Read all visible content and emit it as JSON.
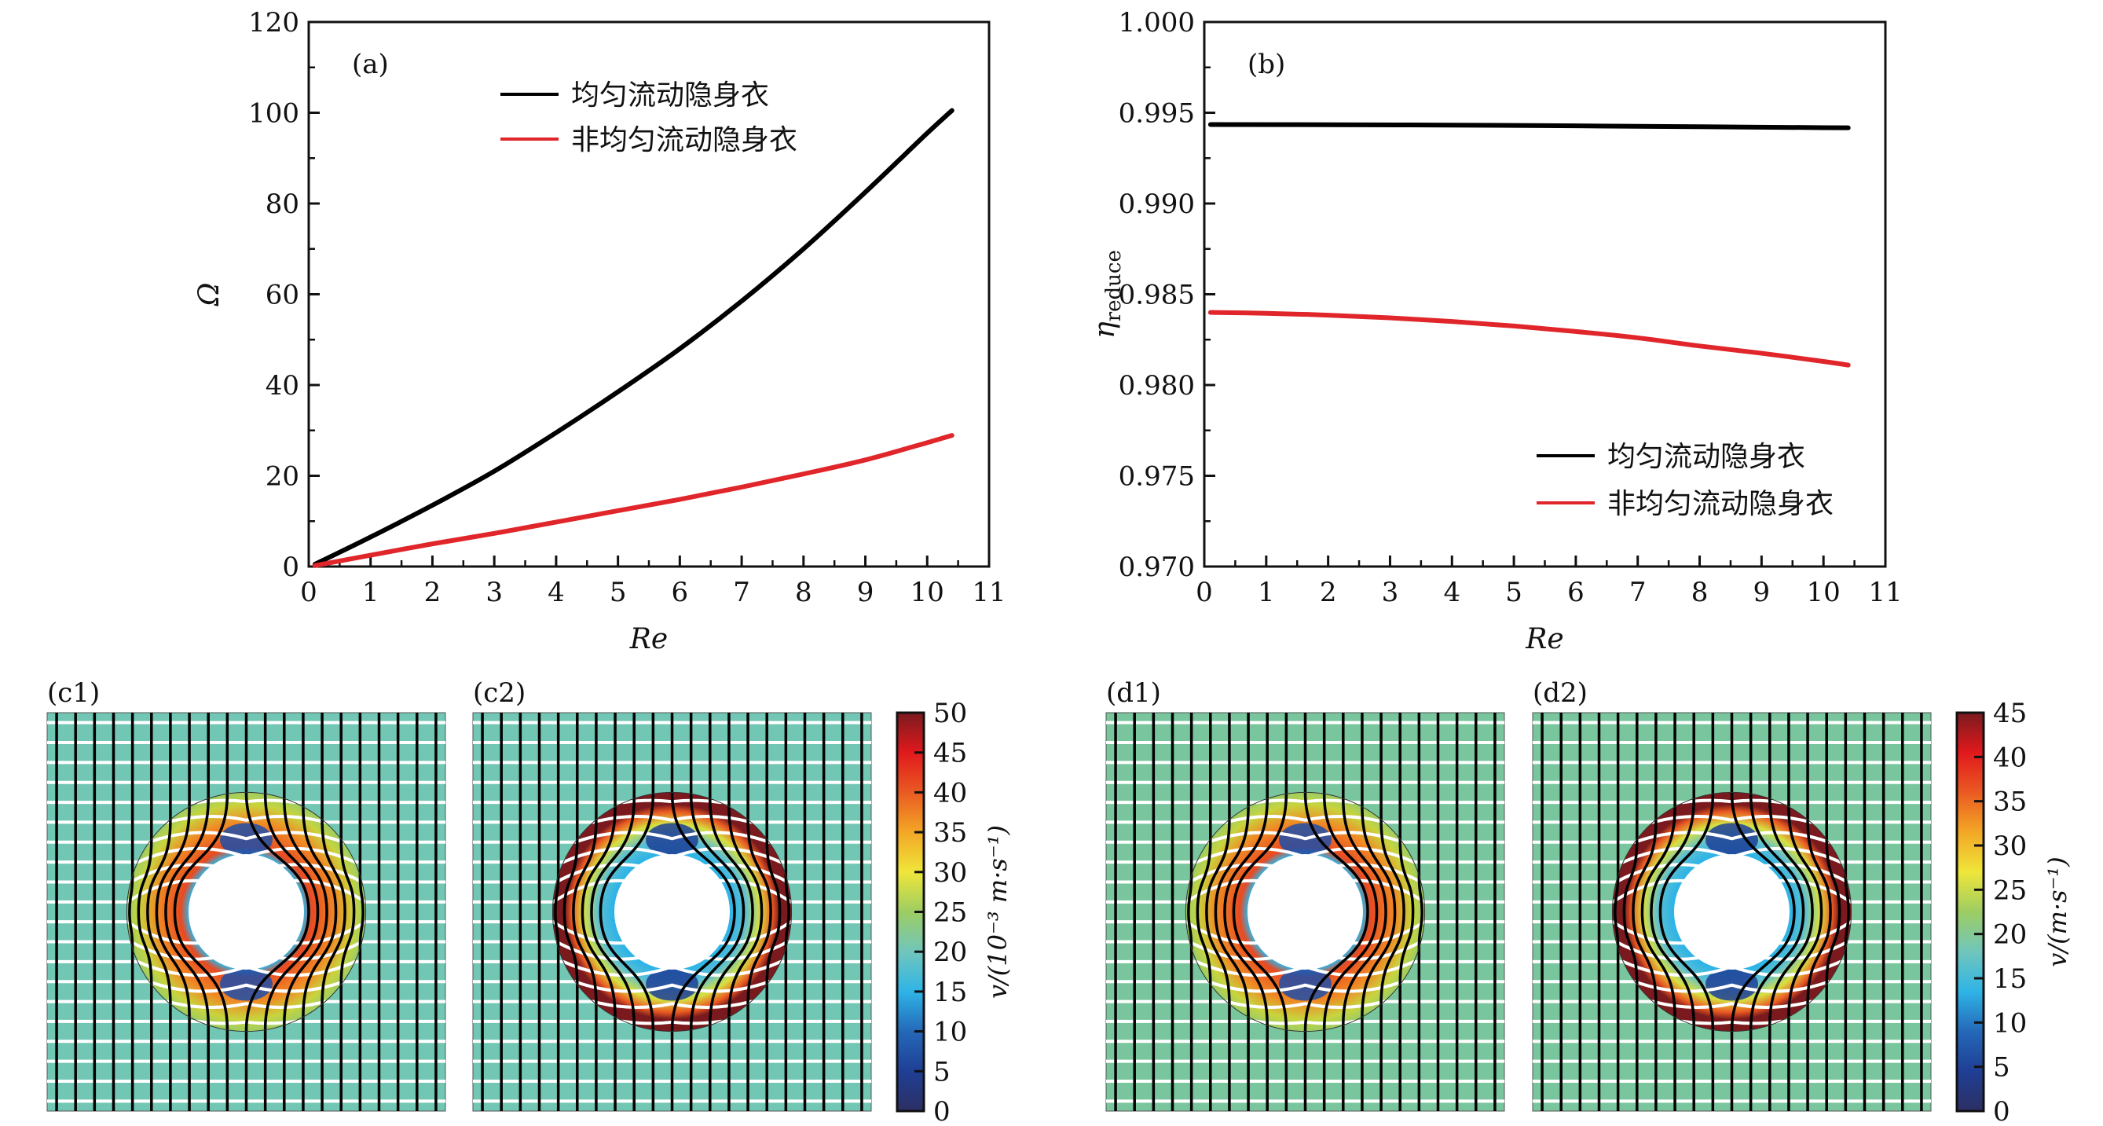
{
  "chart_data": [
    {
      "id": "a",
      "type": "line",
      "panel_label": "(a)",
      "xlabel": "Re",
      "ylabel": "Ω",
      "xlim": [
        0,
        11
      ],
      "ylim": [
        0,
        120
      ],
      "xticks": [
        0,
        1,
        2,
        3,
        4,
        5,
        6,
        7,
        8,
        9,
        10,
        11
      ],
      "yticks": [
        0,
        20,
        40,
        60,
        80,
        100,
        120
      ],
      "yticks_minor_step": 10,
      "xticks_minor_step": 0.5,
      "legend_position": "top-center",
      "grid": false,
      "series": [
        {
          "name": "均匀流动隐身衣",
          "color": "#000000",
          "x": [
            0.1,
            1,
            2,
            3,
            4,
            5,
            6,
            7,
            8,
            9,
            10,
            10.4
          ],
          "y": [
            0.5,
            6.5,
            13.5,
            21,
            29.5,
            38.5,
            48,
            58.5,
            70,
            82.5,
            95.5,
            100.5
          ]
        },
        {
          "name": "非均匀流动隐身衣",
          "color": "#e0262a",
          "x": [
            0.1,
            1,
            2,
            3,
            4,
            5,
            6,
            7,
            8,
            9,
            10,
            10.4
          ],
          "y": [
            0.2,
            2.5,
            5,
            7.3,
            9.8,
            12.3,
            14.8,
            17.5,
            20.4,
            23.5,
            27.3,
            28.9
          ]
        }
      ]
    },
    {
      "id": "b",
      "type": "line",
      "panel_label": "(b)",
      "xlabel": "Re",
      "ylabel": "η",
      "ylabel_sub": "reduce",
      "xlim": [
        0,
        11
      ],
      "ylim": [
        0.97,
        1.0
      ],
      "xticks": [
        0,
        1,
        2,
        3,
        4,
        5,
        6,
        7,
        8,
        9,
        10,
        11
      ],
      "yticks": [
        "0.970",
        "0.975",
        "0.980",
        "0.985",
        "0.990",
        "0.995",
        "1.000"
      ],
      "yticks_minor_step": 0.0025,
      "xticks_minor_step": 0.5,
      "legend_position": "bottom-right",
      "grid": false,
      "series": [
        {
          "name": "均匀流动隐身衣",
          "color": "#000000",
          "x": [
            0.1,
            2,
            4,
            6,
            8,
            10,
            10.4
          ],
          "y": [
            0.99435,
            0.99434,
            0.99432,
            0.99428,
            0.99423,
            0.99418,
            0.99417
          ]
        },
        {
          "name": "非均匀流动隐身衣",
          "color": "#e0262a",
          "x": [
            0.1,
            1,
            2,
            3,
            4,
            5,
            6,
            7,
            8,
            9,
            10,
            10.4
          ],
          "y": [
            0.984,
            0.98395,
            0.98385,
            0.9837,
            0.9835,
            0.98325,
            0.98295,
            0.9826,
            0.98215,
            0.98175,
            0.9813,
            0.9811
          ]
        }
      ]
    },
    {
      "id": "c",
      "type": "heatmap",
      "panels": [
        {
          "label": "(c1)",
          "background": "#72c6b4",
          "ring_style": "uniform"
        },
        {
          "label": "(c2)",
          "background": "#72c6b4",
          "ring_style": "nonuniform"
        }
      ],
      "colorbar": {
        "ticks": [
          "0",
          "5",
          "10",
          "15",
          "20",
          "25",
          "30",
          "35",
          "40",
          "45",
          "50"
        ],
        "range": [
          0,
          50
        ],
        "label": "v/(10⁻³ m·s⁻¹)"
      }
    },
    {
      "id": "d",
      "type": "heatmap",
      "panels": [
        {
          "label": "(d1)",
          "background": "#78c59e",
          "ring_style": "uniform"
        },
        {
          "label": "(d2)",
          "background": "#78c59e",
          "ring_style": "nonuniform"
        }
      ],
      "colorbar": {
        "ticks": [
          "0",
          "5",
          "10",
          "15",
          "20",
          "25",
          "30",
          "35",
          "40",
          "45"
        ],
        "range": [
          0,
          45
        ],
        "label": "v/(m·s⁻¹)"
      }
    }
  ],
  "colormap": [
    "#2c2f63",
    "#1f3f95",
    "#2468b8",
    "#2fb4e6",
    "#70c6bc",
    "#9dcd63",
    "#efe63a",
    "#f3a726",
    "#ea5a22",
    "#e1191d",
    "#7a1a1e"
  ]
}
